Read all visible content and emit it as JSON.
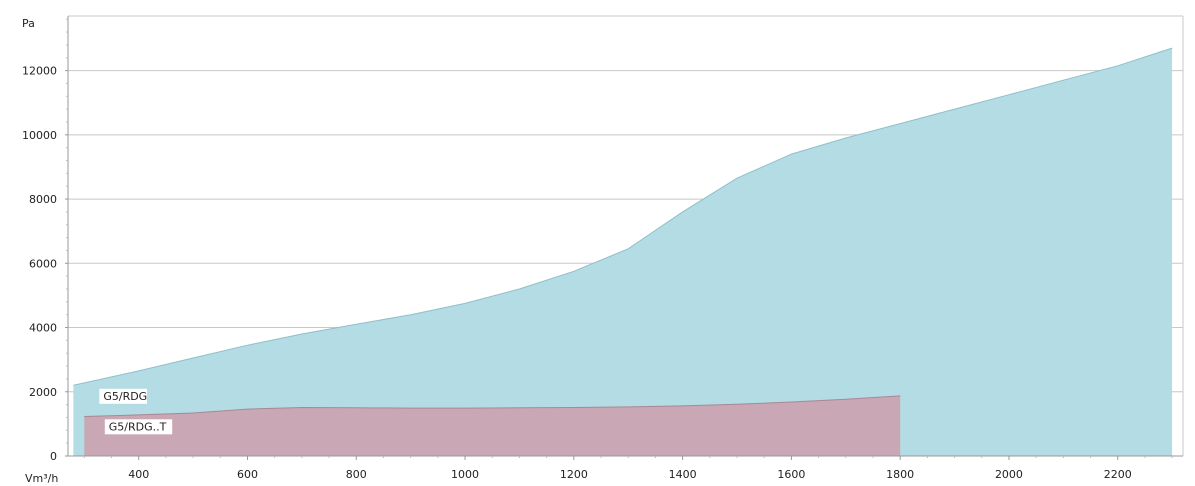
{
  "chart_data": {
    "type": "area",
    "title": "",
    "xlabel": "Vm³/h",
    "ylabel": "Pa",
    "xlim": [
      270,
      2320
    ],
    "ylim": [
      0,
      13700
    ],
    "x_ticks": [
      400,
      600,
      800,
      1000,
      1200,
      1400,
      1600,
      1800,
      2000,
      2200
    ],
    "y_ticks": [
      0,
      2000,
      4000,
      6000,
      8000,
      10000,
      12000
    ],
    "grid": "horizontal",
    "legend": "none",
    "series": [
      {
        "name": "G5/RDG",
        "color": "#b3dce4",
        "line_color": "#8fbfca",
        "x": [
          280,
          400,
          500,
          600,
          700,
          800,
          900,
          1000,
          1100,
          1200,
          1300,
          1400,
          1500,
          1600,
          1700,
          1800,
          1900,
          2000,
          2100,
          2200,
          2300
        ],
        "y": [
          2200,
          2650,
          3050,
          3450,
          3800,
          4100,
          4400,
          4750,
          5200,
          5750,
          6450,
          7600,
          8650,
          9400,
          9900,
          10350,
          10800,
          11250,
          11700,
          12150,
          12700
        ]
      },
      {
        "name": "G5/RDG..T",
        "color": "#c9a7b4",
        "line_color": "#a88896",
        "x": [
          300,
          400,
          500,
          600,
          700,
          800,
          900,
          1000,
          1100,
          1200,
          1300,
          1400,
          1500,
          1600,
          1700,
          1800
        ],
        "y": [
          1230,
          1280,
          1340,
          1460,
          1510,
          1500,
          1490,
          1490,
          1500,
          1510,
          1530,
          1560,
          1610,
          1680,
          1770,
          1870
        ]
      }
    ]
  }
}
